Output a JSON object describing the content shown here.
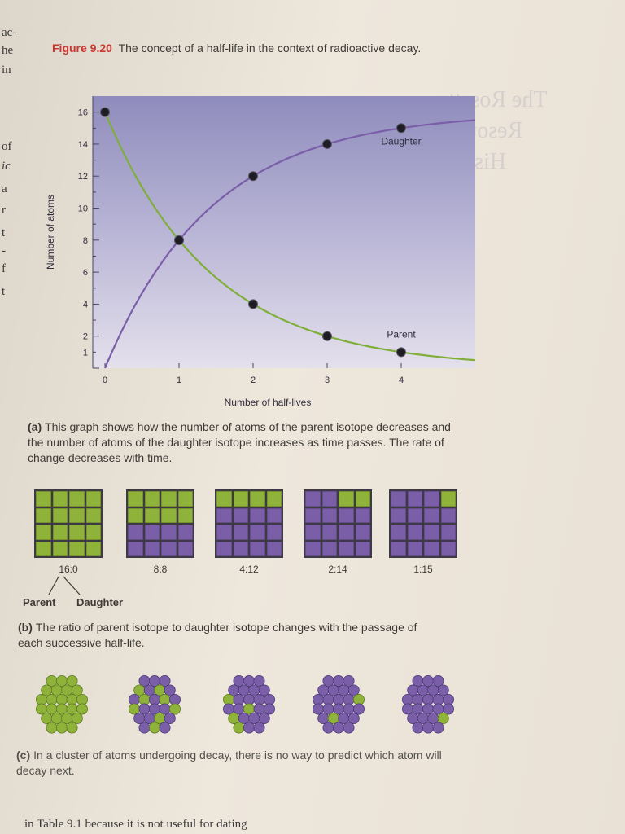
{
  "margin": {
    "lines": [
      "ac-",
      "he",
      "in",
      "of",
      "ic",
      "a",
      "r",
      "t",
      "-",
      "f",
      "t"
    ]
  },
  "figure": {
    "number": "Figure 9.20",
    "title": "The concept of a half-life in the context of radioactive decay."
  },
  "bleed_text": [
    "The Rosetta",
    "Resource",
    "History"
  ],
  "chart_data": {
    "type": "line",
    "title": "",
    "xlabel": "Number of half-lives",
    "ylabel": "Number of atoms",
    "x_ticks": [
      "0",
      "1",
      "2",
      "3",
      "4"
    ],
    "y_ticks": [
      1,
      2,
      4,
      6,
      8,
      10,
      12,
      14,
      16
    ],
    "xlim": [
      0,
      5
    ],
    "ylim": [
      0,
      17
    ],
    "grid": false,
    "series": [
      {
        "name": "Parent",
        "x": [
          0,
          1,
          2,
          3,
          4
        ],
        "values": [
          16,
          8,
          4,
          2,
          1
        ],
        "color": "#7fae3a"
      },
      {
        "name": "Daughter",
        "x": [
          0,
          1,
          2,
          3,
          4
        ],
        "values": [
          0,
          8,
          12,
          14,
          15
        ],
        "color": "#7a5ea8"
      }
    ],
    "background": "#9e9cc4"
  },
  "part_a": {
    "label": "(a)",
    "text": "This graph shows how the number of atoms of the parent isotope decreases and the number of atoms of the daughter isotope increases as time passes. The rate of change decreases with time."
  },
  "grids": [
    {
      "ratio": "16:0",
      "parent": 16
    },
    {
      "ratio": "8:8",
      "parent": 8
    },
    {
      "ratio": "4:12",
      "parent": 4
    },
    {
      "ratio": "2:14",
      "parent": 2
    },
    {
      "ratio": "1:15",
      "parent": 1
    }
  ],
  "legend": {
    "parent": "Parent",
    "daughter": "Daughter"
  },
  "part_b": {
    "label": "(b)",
    "text": "The ratio of parent isotope to daughter isotope changes with the passage of each successive half-life."
  },
  "clusters": [
    {
      "parent": 16
    },
    {
      "parent": 8
    },
    {
      "parent": 4
    },
    {
      "parent": 2
    },
    {
      "parent": 1
    }
  ],
  "part_c": {
    "label": "(c)",
    "text": "In a cluster of atoms undergoing decay, there is no way to predict which atom will decay next."
  },
  "colors": {
    "parent": "#8fb33a",
    "daughter": "#7a5ea8",
    "accent_red": "#c9372f"
  },
  "bottom_text": "in Table 9.1 because it is not useful for dating"
}
